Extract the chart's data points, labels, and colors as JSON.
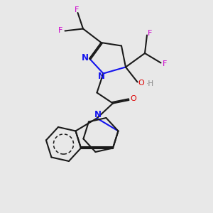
{
  "bg_color": "#e8e8e8",
  "line_color": "#1a1a1a",
  "N_color": "#1414ee",
  "O_color": "#dd0000",
  "F_color": "#cc00cc",
  "H_color": "#888888",
  "bond_lw": 1.5,
  "fig_size": [
    3.0,
    3.0
  ],
  "dpi": 100,
  "xlim": [
    0,
    10
  ],
  "ylim": [
    0,
    10
  ]
}
